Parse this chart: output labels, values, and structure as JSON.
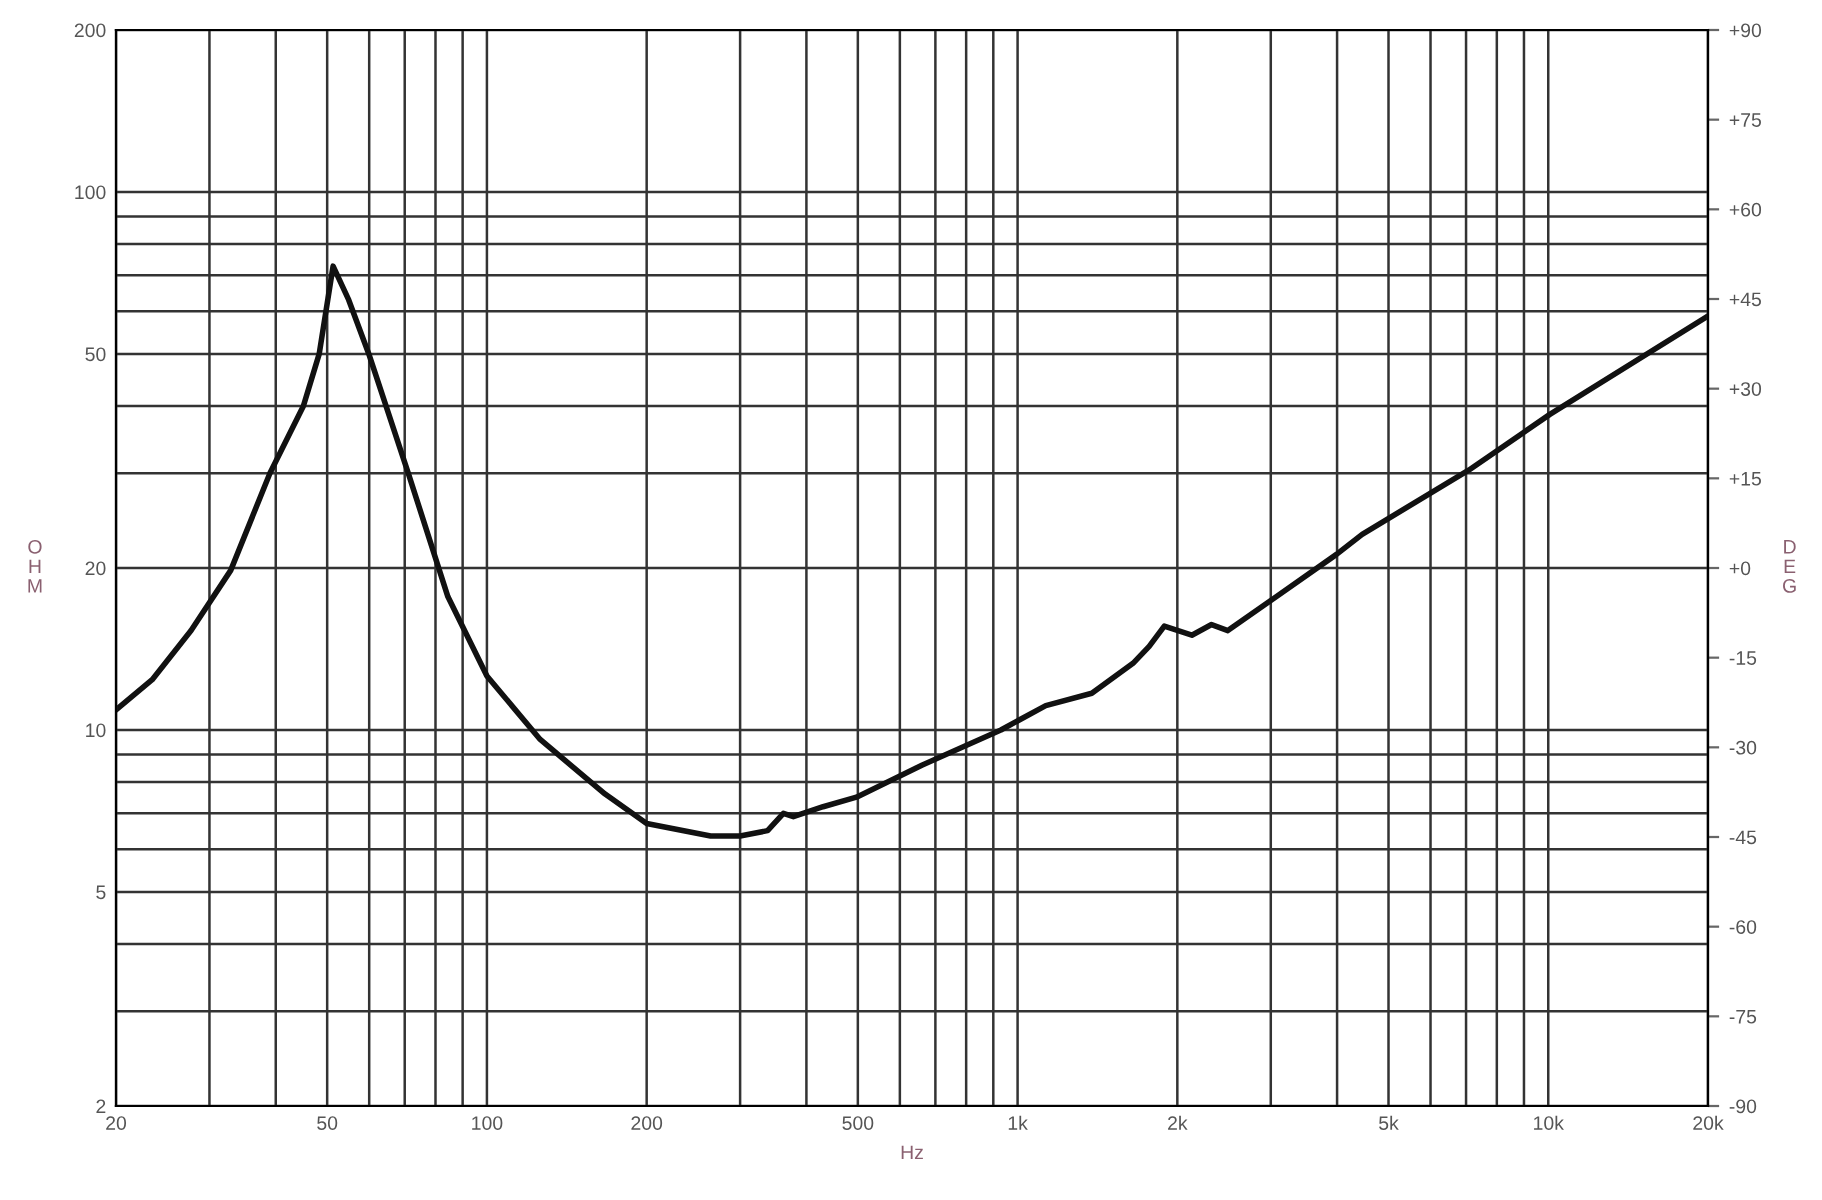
{
  "chart_data": {
    "type": "line",
    "xlabel": "Hz",
    "ylabel": "OHM",
    "y2label": "DEG",
    "log": "xy",
    "grid": true,
    "marker": "none",
    "line_style": "solid",
    "series": [
      {
        "color": "#111111",
        "x": [
          20,
          23.4,
          27.7,
          32.9,
          39,
          45.1,
          48.3,
          51.3,
          54.9,
          59.9,
          71.1,
          84.4,
          100,
          126,
          167,
          200,
          264,
          300,
          338,
          362,
          378,
          430,
          497,
          660,
          930,
          1130,
          1380,
          1650,
          1770,
          1890,
          2130,
          2320,
          2490,
          3000,
          3990,
          4460,
          7080,
          10070,
          20000
        ],
        "values": [
          10.9,
          12.4,
          15.3,
          19.8,
          30,
          40,
          50,
          72.8,
          63,
          50,
          30,
          17.7,
          12.6,
          9.6,
          7.6,
          6.7,
          6.35,
          6.35,
          6.5,
          7.0,
          6.9,
          7.2,
          7.5,
          8.6,
          10,
          11.1,
          11.7,
          13.3,
          14.3,
          15.6,
          15.0,
          15.7,
          15.3,
          17.4,
          21.2,
          23.1,
          30.4,
          38.6,
          58.8
        ]
      }
    ],
    "xlim": [
      20,
      20000
    ],
    "ylim": [
      2,
      200
    ],
    "xticks": [
      20,
      {
        "value": 30,
        "label": null
      },
      {
        "value": 40,
        "label": null
      },
      50,
      {
        "value": 60,
        "label": null
      },
      {
        "value": 70,
        "label": null
      },
      {
        "value": 80,
        "label": null
      },
      {
        "value": 90,
        "label": null
      },
      100,
      200,
      {
        "value": 300,
        "label": null
      },
      {
        "value": 400,
        "label": null
      },
      500,
      {
        "value": 600,
        "label": null
      },
      {
        "value": 700,
        "label": null
      },
      {
        "value": 800,
        "label": null
      },
      {
        "value": 900,
        "label": null
      },
      {
        "value": 1000,
        "label": "1k"
      },
      {
        "value": 2000,
        "label": "2k"
      },
      {
        "value": 3000,
        "label": null
      },
      {
        "value": 4000,
        "label": null
      },
      {
        "value": 5000,
        "label": "5k"
      },
      {
        "value": 6000,
        "label": null
      },
      {
        "value": 7000,
        "label": null
      },
      {
        "value": 8000,
        "label": null
      },
      {
        "value": 9000,
        "label": null
      },
      {
        "value": 10000,
        "label": "10k"
      },
      {
        "value": 20000,
        "label": "20k"
      }
    ],
    "yticks": [
      2,
      {
        "value": 3,
        "label": null
      },
      {
        "value": 4,
        "label": null
      },
      5,
      {
        "value": 6,
        "label": null
      },
      {
        "value": 7,
        "label": null
      },
      {
        "value": 8,
        "label": null
      },
      {
        "value": 9,
        "label": null
      },
      10,
      20,
      {
        "value": 30,
        "label": null
      },
      {
        "value": 40,
        "label": null
      },
      50,
      {
        "value": 60,
        "label": null
      },
      {
        "value": 70,
        "label": null
      },
      {
        "value": 80,
        "label": null
      },
      {
        "value": 90,
        "label": null
      },
      100,
      200
    ],
    "y2lim": [
      -90,
      90
    ],
    "y2ticks": [
      {
        "value": -90,
        "label": "-90"
      },
      {
        "value": -75,
        "label": "-75"
      },
      {
        "value": -60,
        "label": "-60"
      },
      {
        "value": -45,
        "label": "-45"
      },
      {
        "value": -30,
        "label": "-30"
      },
      {
        "value": -15,
        "label": "-15"
      },
      {
        "value": 0,
        "label": "+0"
      },
      {
        "value": 15,
        "label": "+15"
      },
      {
        "value": 30,
        "label": "+30"
      },
      {
        "value": 45,
        "label": "+45"
      },
      {
        "value": 60,
        "label": "+60"
      },
      {
        "value": 75,
        "label": "+75"
      },
      {
        "value": 90,
        "label": "+90"
      }
    ]
  }
}
